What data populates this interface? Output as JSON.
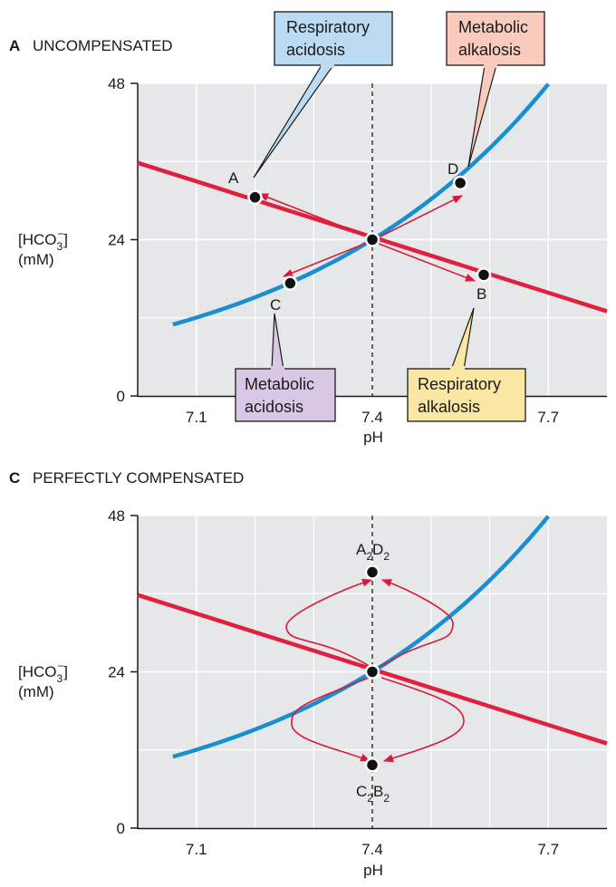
{
  "colors": {
    "co2_line": "#e0203e",
    "bicarb_curve": "#1a8fd0",
    "arrow": "#d81b3c",
    "plot_bg": "#e6e7e8",
    "callout_resp_acid": "#bcdaf2",
    "callout_met_alk": "#f9cbbd",
    "callout_met_acid": "#d8c8e6",
    "callout_resp_alk": "#fbe7a4"
  },
  "chart_data": [
    {
      "type": "line",
      "panel_letter": "A",
      "title": "UNCOMPENSATED",
      "xlabel": "pH",
      "ylabel": "[HCO3-]",
      "ylabel_sub": "3",
      "ylabel_sup": "−",
      "ylabel_unit": "(mM)",
      "xlim": [
        7.0,
        7.8
      ],
      "ylim": [
        0,
        48
      ],
      "x_ticks": [
        {
          "value": 7.1,
          "label": "7.1"
        },
        {
          "value": 7.4,
          "label": "7.4"
        },
        {
          "value": 7.7,
          "label": "7.7"
        }
      ],
      "y_ticks": [
        {
          "value": 0,
          "label": "0"
        },
        {
          "value": 24,
          "label": "24"
        },
        {
          "value": 48,
          "label": "48"
        }
      ],
      "grid": true,
      "reference_line_x": 7.4,
      "series": [
        {
          "kind": "bicarbonate_curve",
          "x": [
            7.06,
            7.15,
            7.25,
            7.35,
            7.4,
            7.5,
            7.6,
            7.7
          ],
          "y": [
            8.5,
            10.8,
            14.2,
            19.0,
            24.0,
            30.0,
            38.0,
            48.0
          ]
        },
        {
          "kind": "co2_buffer_line",
          "x": [
            7.06,
            7.8
          ],
          "y": [
            35.5,
            13.0
          ]
        }
      ],
      "points": [
        {
          "label": "A",
          "x": 7.2,
          "y": 30.5
        },
        {
          "label": "D",
          "x": 7.55,
          "y": 32.7
        },
        {
          "label": "C",
          "x": 7.26,
          "y": 17.3
        },
        {
          "label": "B",
          "x": 7.59,
          "y": 18.6
        },
        {
          "label": "",
          "x": 7.4,
          "y": 24.0
        }
      ],
      "callouts": [
        {
          "line1": "Respiratory",
          "line2": "acidosis"
        },
        {
          "line1": "Metabolic",
          "line2": "alkalosis"
        },
        {
          "line1": "Metabolic",
          "line2": "acidosis"
        },
        {
          "line1": "Respiratory",
          "line2": "alkalosis"
        }
      ]
    },
    {
      "type": "line",
      "panel_letter": "C",
      "title": "PERFECTLY COMPENSATED",
      "xlabel": "pH",
      "ylabel": "[HCO3-]",
      "ylabel_sub": "3",
      "ylabel_sup": "−",
      "ylabel_unit": "(mM)",
      "xlim": [
        7.0,
        7.8
      ],
      "ylim": [
        0,
        48
      ],
      "x_ticks": [
        {
          "value": 7.1,
          "label": "7.1"
        },
        {
          "value": 7.4,
          "label": "7.4"
        },
        {
          "value": 7.7,
          "label": "7.7"
        }
      ],
      "y_ticks": [
        {
          "value": 0,
          "label": "0"
        },
        {
          "value": 24,
          "label": "24"
        },
        {
          "value": 48,
          "label": "48"
        }
      ],
      "grid": true,
      "reference_line_x": 7.4,
      "series": [
        {
          "kind": "bicarbonate_curve",
          "x": [
            7.06,
            7.15,
            7.25,
            7.35,
            7.4,
            7.5,
            7.6,
            7.7
          ],
          "y": [
            8.5,
            10.8,
            14.2,
            19.0,
            24.0,
            30.0,
            38.0,
            48.0
          ]
        },
        {
          "kind": "co2_buffer_line",
          "x": [
            7.06,
            7.8
          ],
          "y": [
            35.5,
            13.0
          ]
        }
      ],
      "points": [
        {
          "label_main": "A",
          "label_sub1": "2",
          "label_mid": "D",
          "label_sub2": "2",
          "x": 7.4,
          "y": 39.3
        },
        {
          "label_main": "C",
          "label_sub1": "2",
          "label_mid": "B",
          "label_sub2": "2",
          "x": 7.4,
          "y": 9.7
        },
        {
          "label_main": "",
          "x": 7.4,
          "y": 24.0
        }
      ]
    }
  ]
}
